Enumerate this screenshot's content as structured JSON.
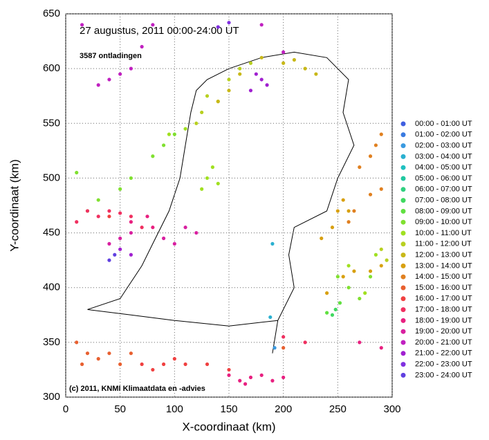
{
  "chart_data": {
    "type": "scatter",
    "title": "27 augustus, 2011    00:00-24:00 UT",
    "subtitle": "3587 ontladingen",
    "footnote": "(c) 2011, KNMI Klimaatdata en -advies",
    "x_label": "X-coordinaat (km)",
    "y_label": "Y-coordinaat (km)",
    "xlim": [
      0,
      300
    ],
    "ylim": [
      300,
      650
    ],
    "xticks": [
      0,
      50,
      100,
      150,
      200,
      250,
      300
    ],
    "yticks": [
      300,
      350,
      400,
      450,
      500,
      550,
      600,
      650
    ],
    "grid": true,
    "legend": "right",
    "series": [
      {
        "name": "00:00 - 01:00 UT",
        "color": "#3f5fe0",
        "x": [],
        "y": []
      },
      {
        "name": "01:00 - 02:00 UT",
        "color": "#3a7ae0",
        "x": [],
        "y": []
      },
      {
        "name": "02:00 - 03:00 UT",
        "color": "#3a9ae0",
        "x": [
          192
        ],
        "y": [
          345
        ]
      },
      {
        "name": "03:00 - 04:00 UT",
        "color": "#2ab0d0",
        "x": [
          188,
          190
        ],
        "y": [
          373,
          440
        ]
      },
      {
        "name": "04:00 - 05:00 UT",
        "color": "#20c0c0",
        "x": [],
        "y": []
      },
      {
        "name": "05:00 - 06:00 UT",
        "color": "#20c8a0",
        "x": [],
        "y": []
      },
      {
        "name": "06:00 - 07:00 UT",
        "color": "#30d080",
        "x": [],
        "y": []
      },
      {
        "name": "07:00 - 08:00 UT",
        "color": "#40d860",
        "x": [
          248,
          245
        ],
        "y": [
          380,
          375
        ]
      },
      {
        "name": "08:00 - 09:00 UT",
        "color": "#60e040",
        "x": [
          252,
          240
        ],
        "y": [
          386,
          377
        ]
      },
      {
        "name": "09:00 - 10:00 UT",
        "color": "#80e030",
        "x": [
          10,
          30,
          60,
          80,
          100,
          90,
          50,
          20,
          260,
          270,
          280,
          250
        ],
        "y": [
          505,
          480,
          500,
          520,
          540,
          530,
          490,
          470,
          400,
          390,
          410,
          410
        ]
      },
      {
        "name": "10:00 - 11:00 UT",
        "color": "#a0e020",
        "x": [
          130,
          135,
          140,
          125,
          95,
          110,
          260,
          275,
          285
        ],
        "y": [
          500,
          510,
          495,
          490,
          540,
          545,
          420,
          395,
          430
        ]
      },
      {
        "name": "11:00 - 12:00 UT",
        "color": "#b8d020",
        "x": [
          120,
          125,
          130,
          150,
          160,
          170,
          140,
          290,
          295
        ],
        "y": [
          550,
          560,
          575,
          590,
          600,
          605,
          570,
          435,
          425
        ]
      },
      {
        "name": "12:00 - 13:00 UT",
        "color": "#c8b818",
        "x": [
          140,
          150,
          160,
          180,
          200,
          210,
          230,
          220
        ],
        "y": [
          570,
          580,
          595,
          610,
          605,
          608,
          595,
          600
        ]
      },
      {
        "name": "13:00 - 14:00 UT",
        "color": "#d8a010",
        "x": [
          250,
          255,
          260,
          245,
          235,
          255,
          265,
          280,
          290,
          240
        ],
        "y": [
          470,
          480,
          470,
          455,
          445,
          410,
          415,
          415,
          420,
          395
        ]
      },
      {
        "name": "14:00 - 15:00 UT",
        "color": "#e08020",
        "x": [
          270,
          280,
          285,
          290,
          290,
          280,
          260,
          265
        ],
        "y": [
          510,
          520,
          530,
          540,
          490,
          485,
          460,
          470
        ]
      },
      {
        "name": "15:00 - 16:00 UT",
        "color": "#e86030",
        "x": [
          10,
          20,
          30,
          40,
          50,
          15,
          60,
          200
        ],
        "y": [
          350,
          340,
          335,
          340,
          330,
          330,
          340,
          345
        ]
      },
      {
        "name": "16:00 - 17:00 UT",
        "color": "#f04040",
        "x": [
          70,
          80,
          90,
          100,
          110,
          130,
          150,
          40
        ],
        "y": [
          330,
          325,
          330,
          335,
          330,
          330,
          325,
          465
        ]
      },
      {
        "name": "17:00 - 18:00 UT",
        "color": "#f03060",
        "x": [
          20,
          30,
          40,
          50,
          10,
          60,
          70,
          200,
          220
        ],
        "y": [
          470,
          465,
          470,
          468,
          460,
          465,
          455,
          355,
          350
        ]
      },
      {
        "name": "18:00 - 19:00 UT",
        "color": "#e82080",
        "x": [
          150,
          160,
          170,
          180,
          190,
          200,
          165,
          60,
          80,
          75,
          270,
          290
        ],
        "y": [
          320,
          315,
          318,
          320,
          315,
          318,
          312,
          460,
          455,
          465,
          350,
          345
        ]
      },
      {
        "name": "19:00 - 20:00 UT",
        "color": "#d820a0",
        "x": [
          40,
          50,
          60,
          90,
          100,
          120,
          110
        ],
        "y": [
          440,
          445,
          450,
          445,
          440,
          450,
          455
        ]
      },
      {
        "name": "20:00 - 21:00 UT",
        "color": "#c020c0",
        "x": [
          30,
          40,
          50,
          60,
          70,
          80,
          15,
          180,
          200
        ],
        "y": [
          585,
          590,
          595,
          600,
          620,
          640,
          640,
          640,
          615
        ]
      },
      {
        "name": "21:00 - 22:00 UT",
        "color": "#a020d0",
        "x": [
          180,
          175,
          185,
          170,
          60,
          50
        ],
        "y": [
          590,
          595,
          585,
          580,
          430,
          435
        ]
      },
      {
        "name": "22:00 - 23:00 UT",
        "color": "#8030e0",
        "x": [
          140,
          150
        ],
        "y": [
          638,
          642
        ]
      },
      {
        "name": "23:00 - 24:00 UT",
        "color": "#6040e0",
        "x": [
          40,
          45
        ],
        "y": [
          425,
          430
        ]
      }
    ]
  }
}
